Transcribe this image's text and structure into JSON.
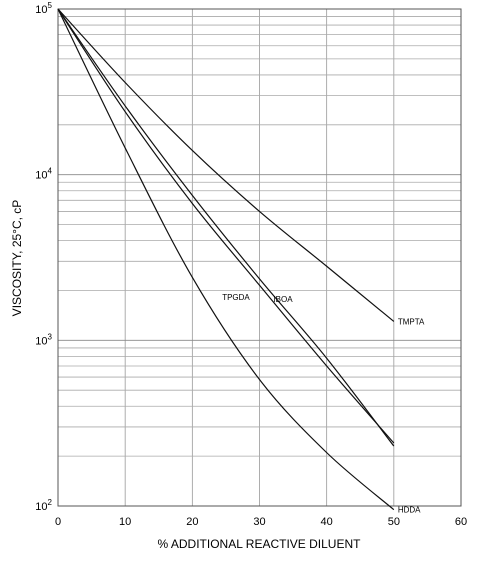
{
  "chart_data": {
    "type": "line",
    "title": "",
    "xlabel": "% ADDITIONAL REACTIVE DILUENT",
    "ylabel": "VISCOSITY, 25°C, cP",
    "xlim": [
      0,
      60
    ],
    "ylim": [
      100,
      100000
    ],
    "yscale": "log",
    "grid": true,
    "x_ticks": [
      "0",
      "10",
      "20",
      "30",
      "40",
      "50",
      "60"
    ],
    "y_ticks": [
      {
        "value": 100,
        "base": "10",
        "exp": "2"
      },
      {
        "value": 1000,
        "base": "10",
        "exp": "3"
      },
      {
        "value": 10000,
        "base": "10",
        "exp": "4"
      },
      {
        "value": 100000,
        "base": "10",
        "exp": "5"
      }
    ],
    "series": [
      {
        "name": "TMPTA",
        "x": [
          0,
          10,
          20,
          30,
          40,
          50
        ],
        "y": [
          100000,
          36000,
          14000,
          6000,
          2800,
          1300
        ]
      },
      {
        "name": "IBOA",
        "x": [
          0,
          10,
          20,
          30,
          40,
          50
        ],
        "y": [
          100000,
          26000,
          7500,
          2350,
          780,
          230
        ]
      },
      {
        "name": "TPGDA",
        "x": [
          0,
          10,
          20,
          30,
          40,
          50
        ],
        "y": [
          100000,
          24000,
          6700,
          2150,
          700,
          240
        ]
      },
      {
        "name": "HDDA",
        "x": [
          0,
          10,
          20,
          30,
          40,
          50
        ],
        "y": [
          100000,
          14500,
          2400,
          580,
          210,
          95
        ]
      }
    ]
  }
}
